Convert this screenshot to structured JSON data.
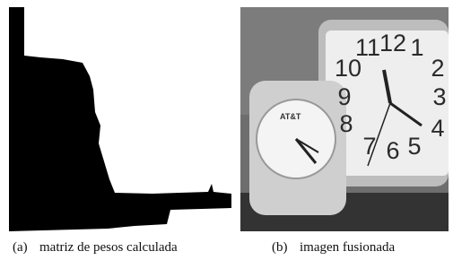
{
  "figure": {
    "panels": [
      {
        "label": "(a)",
        "caption": "matriz de pesos calculada"
      },
      {
        "label": "(b)",
        "caption": "imagen fusionada",
        "clock_numerals": [
          "10",
          "11",
          "12",
          "1",
          "2",
          "3",
          "4",
          "5",
          "6",
          "7",
          "8",
          "9"
        ],
        "small_clock_brand": "AT&T"
      }
    ]
  }
}
